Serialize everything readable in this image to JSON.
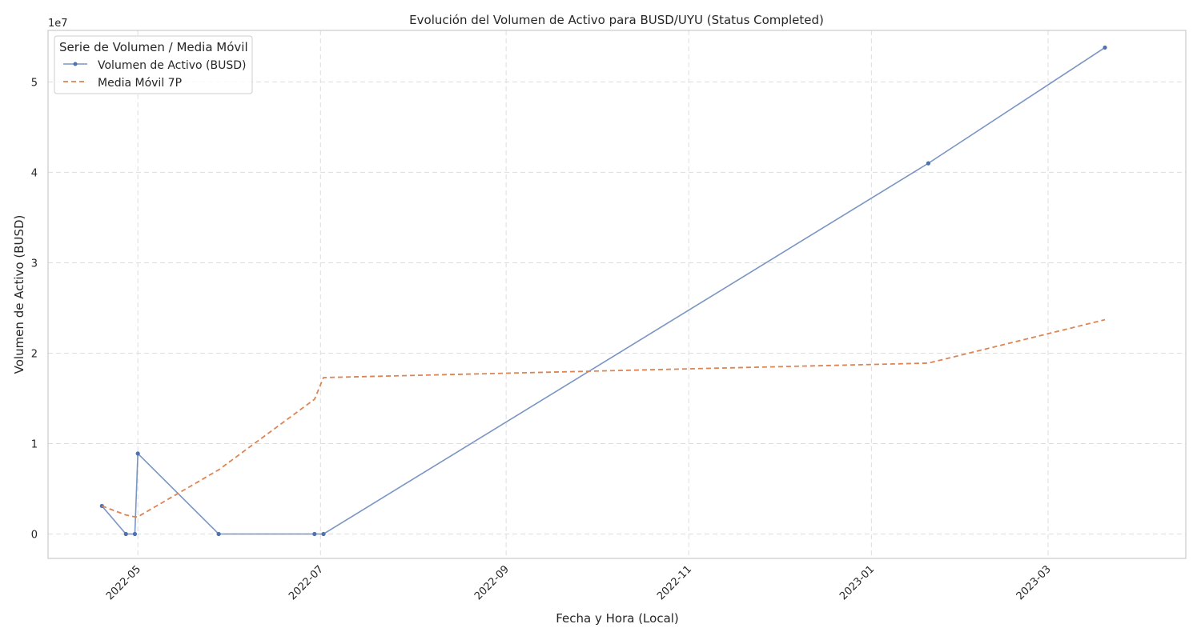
{
  "chart_data": {
    "type": "line",
    "title": "Evolución del Volumen de Activo para BUSD/UYU (Status Completed)",
    "xlabel": "Fecha y Hora (Local)",
    "ylabel": "Volumen de Activo (BUSD)",
    "y_multiplier_label": "1e7",
    "y_scale": 10000000,
    "x_axis_type": "date",
    "xlim": [
      "2022-04-01",
      "2023-04-16"
    ],
    "ylim": [
      -2700000,
      55700000
    ],
    "x_ticks": [
      "2022-05-01",
      "2022-07-01",
      "2022-09-01",
      "2022-11-01",
      "2023-01-01",
      "2023-03-01"
    ],
    "x_tick_labels": [
      "2022-05",
      "2022-07",
      "2022-09",
      "2022-11",
      "2023-01",
      "2023-03"
    ],
    "y_ticks": [
      0,
      10000000,
      20000000,
      30000000,
      40000000,
      50000000
    ],
    "y_tick_labels": [
      "0",
      "1",
      "2",
      "3",
      "4",
      "5"
    ],
    "grid": true,
    "legend": {
      "title": "Serie de Volumen / Media Móvil",
      "position": "top-left"
    },
    "series": [
      {
        "name": "Volumen de Activo (BUSD)",
        "color": "#4c72b0",
        "style": "solid",
        "markers": true,
        "x": [
          "2022-04-19",
          "2022-04-27",
          "2022-04-30",
          "2022-05-01",
          "2022-05-28",
          "2022-06-29",
          "2022-07-02",
          "2023-01-20",
          "2023-03-20"
        ],
        "y": [
          3100000,
          0,
          0,
          8900000,
          0,
          0,
          0,
          41000000,
          53800000
        ]
      },
      {
        "name": "Media Móvil 7P",
        "color": "#dd8452",
        "style": "dashed",
        "markers": false,
        "x": [
          "2022-04-19",
          "2022-04-27",
          "2022-04-30",
          "2022-05-01",
          "2022-05-28",
          "2022-06-29",
          "2022-07-02",
          "2023-01-20",
          "2023-03-20"
        ],
        "y": [
          3100000,
          2100000,
          1900000,
          1900000,
          7100000,
          14900000,
          17300000,
          18900000,
          23700000
        ]
      }
    ]
  }
}
